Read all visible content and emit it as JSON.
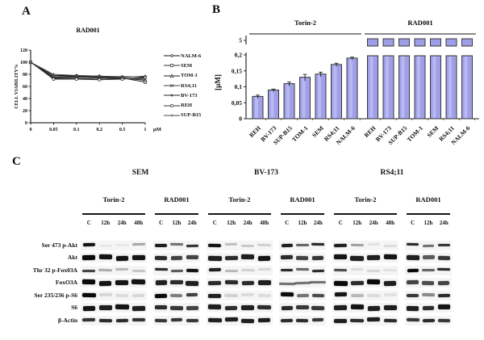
{
  "figure": {
    "background": "#ffffff",
    "panel_labels": {
      "a": "A",
      "b": "B",
      "c": "C"
    }
  },
  "chart_data": [
    {
      "id": "viability-curve",
      "type": "line",
      "panel": "A",
      "title": "RAD001",
      "xlabel": "µM",
      "ylabel": "CELL VIABILITY%",
      "x_tick_labels": [
        "0",
        "0.05",
        "0.1",
        "0.2",
        "0.5",
        "1"
      ],
      "yticks": [
        0,
        20,
        40,
        60,
        80,
        100,
        120
      ],
      "ylim": [
        0,
        120
      ],
      "grid": false,
      "legend_position": "right",
      "series": [
        {
          "name": "NALM-6",
          "marker": "diamond",
          "values": [
            100,
            78,
            78,
            77,
            76,
            76
          ]
        },
        {
          "name": "SEM",
          "marker": "square",
          "values": [
            100,
            76,
            77,
            76,
            74,
            67
          ]
        },
        {
          "name": "TOM-1",
          "marker": "triangle",
          "values": [
            100,
            75,
            76,
            75,
            74,
            70
          ]
        },
        {
          "name": "RS4;11",
          "marker": "x",
          "values": [
            100,
            74,
            75,
            74,
            73,
            72
          ]
        },
        {
          "name": "BV-173",
          "marker": "asterisk",
          "values": [
            100,
            73,
            73,
            72,
            73,
            74
          ]
        },
        {
          "name": "REH",
          "marker": "circle",
          "values": [
            100,
            72,
            72,
            71,
            72,
            75
          ]
        },
        {
          "name": "SUP-B15",
          "marker": "plus",
          "values": [
            100,
            80,
            78,
            77,
            75,
            77
          ]
        }
      ]
    },
    {
      "id": "ic50-bars",
      "type": "bar",
      "panel": "B",
      "ylabel": "[µM]",
      "categories": [
        "REH",
        "BV-173",
        "SUP-B15",
        "TOM-1",
        "SEM",
        "RS4;11",
        "NALM-6"
      ],
      "groups": [
        {
          "name": "Torin-2",
          "offscale": false,
          "values": [
            0.07,
            0.09,
            0.11,
            0.13,
            0.14,
            0.17,
            0.19
          ],
          "errors": [
            0.004,
            0.003,
            0.005,
            0.009,
            0.006,
            0.004,
            0.003
          ]
        },
        {
          "name": "RAD001",
          "offscale": true,
          "values": [
            5,
            5,
            5,
            5,
            5,
            5,
            5
          ],
          "errors": [
            0,
            0,
            0,
            0,
            0,
            0,
            0
          ]
        }
      ],
      "ytick_values": [
        0,
        0.05,
        0.1,
        0.15,
        0.2
      ],
      "ytick_labels": [
        "0",
        "0,05",
        "0,1",
        "0,15",
        "0,2"
      ],
      "break_tick_label": "5",
      "axis_break": true,
      "bar_fill": "#9f9fe8",
      "bar_fill_light": "#b8b8f2",
      "bar_border": "#3a3a3a",
      "rule_color": "#8a8a8a"
    }
  ],
  "blots": {
    "row_labels": [
      "Ser 473 p-Akt",
      "Akt",
      "Thr 32 p-Fox03A",
      "FoxO3A",
      "Ser 235/236 p-S6",
      "S6",
      "β-Actin"
    ],
    "row_thickness": [
      3,
      5,
      3,
      5,
      4,
      5,
      4
    ],
    "cell_lines": [
      {
        "name": "SEM",
        "groups": [
          {
            "drug": "Torin-2",
            "lanes": [
              "C",
              "12h",
              "24h",
              "48h"
            ],
            "joined": [],
            "bands": [
              [
                0.95,
                0.05,
                0.05,
                0.32
              ],
              [
                1.0,
                0.95,
                0.95,
                0.95
              ],
              [
                0.75,
                0.3,
                0.25,
                0.2
              ],
              [
                1.0,
                0.95,
                0.95,
                0.95
              ],
              [
                1.0,
                0.12,
                0.1,
                0.12
              ],
              [
                0.95,
                0.9,
                0.95,
                0.9
              ],
              [
                0.82,
                0.85,
                0.85,
                0.82
              ]
            ]
          },
          {
            "drug": "RAD001",
            "lanes": [
              "C",
              "12h",
              "24h"
            ],
            "joined": [],
            "bands": [
              [
                0.9,
                0.55,
                0.82
              ],
              [
                0.85,
                0.75,
                0.75
              ],
              [
                0.85,
                0.65,
                0.95
              ],
              [
                0.9,
                0.85,
                0.9
              ],
              [
                1.0,
                0.5,
                0.78
              ],
              [
                0.85,
                0.8,
                0.75
              ],
              [
                0.8,
                0.8,
                0.8
              ]
            ]
          }
        ]
      },
      {
        "name": "BV-173",
        "groups": [
          {
            "drug": "Torin-2",
            "lanes": [
              "C",
              "12h",
              "24h",
              "48h"
            ],
            "joined": [],
            "bands": [
              [
                0.95,
                0.22,
                0.18,
                0.15
              ],
              [
                0.9,
                0.85,
                0.9,
                0.95
              ],
              [
                0.9,
                0.25,
                0.15,
                0.12
              ],
              [
                0.85,
                0.85,
                0.85,
                0.9
              ],
              [
                0.9,
                0.15,
                0.1,
                0.1
              ],
              [
                0.9,
                0.85,
                0.9,
                0.85
              ],
              [
                0.9,
                0.9,
                0.9,
                0.9
              ]
            ]
          },
          {
            "drug": "RAD001",
            "lanes": [
              "C",
              "12h",
              "24h"
            ],
            "joined": [
              3
            ],
            "bands": [
              [
                0.9,
                0.6,
                0.85
              ],
              [
                0.85,
                0.75,
                0.8
              ],
              [
                0.85,
                0.6,
                0.85
              ],
              [
                0.55,
                0.55,
                0.55
              ],
              [
                1.0,
                0.55,
                0.72
              ],
              [
                0.85,
                0.8,
                0.8
              ],
              [
                0.85,
                0.85,
                0.8
              ]
            ]
          }
        ]
      },
      {
        "name": "RS4;11",
        "groups": [
          {
            "drug": "Torin-2",
            "lanes": [
              "C",
              "12h",
              "24h",
              "48h"
            ],
            "joined": [],
            "bands": [
              [
                0.9,
                0.35,
                0.08,
                0.1
              ],
              [
                0.95,
                0.9,
                0.9,
                0.95
              ],
              [
                0.7,
                0.1,
                0.12,
                0.08
              ],
              [
                1.0,
                0.85,
                1.0,
                0.9
              ],
              [
                0.95,
                0.25,
                0.1,
                0.08
              ],
              [
                0.9,
                0.95,
                0.9,
                0.9
              ],
              [
                0.9,
                0.85,
                0.9,
                0.85
              ]
            ]
          },
          {
            "drug": "RAD001",
            "lanes": [
              "C",
              "12h",
              "24h"
            ],
            "joined": [],
            "bands": [
              [
                0.85,
                0.55,
                0.8
              ],
              [
                0.9,
                0.65,
                0.8
              ],
              [
                1.0,
                0.6,
                0.85
              ],
              [
                0.75,
                0.7,
                0.75
              ],
              [
                0.8,
                0.45,
                0.85
              ],
              [
                0.9,
                0.85,
                0.95
              ],
              [
                0.8,
                0.85,
                0.8
              ]
            ]
          }
        ]
      }
    ]
  }
}
